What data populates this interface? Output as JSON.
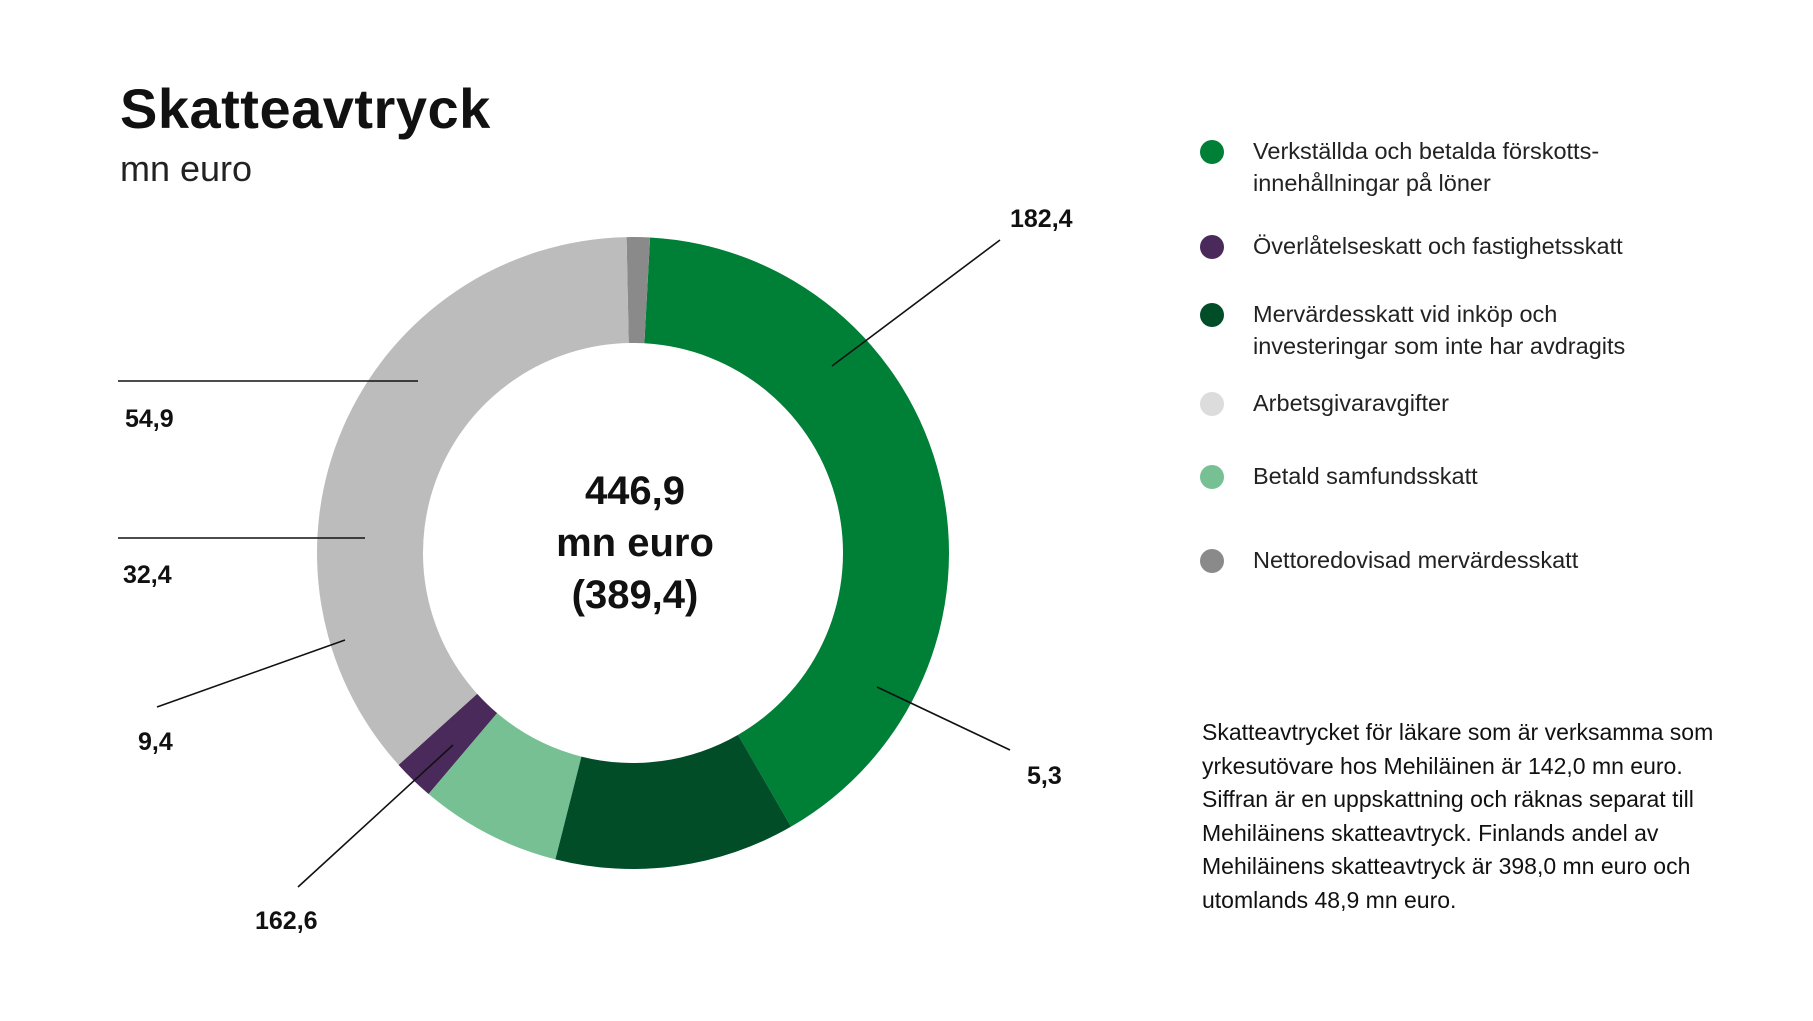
{
  "title": "Skatteavtryck",
  "subtitle": "mn euro",
  "center": {
    "line1": "446,9",
    "line2": "mn euro",
    "line3": "(389,4)"
  },
  "chart_data": {
    "type": "pie",
    "title": "Skatteavtryck",
    "subtitle": "mn euro",
    "total": 446.9,
    "total_previous": 389.4,
    "slices": [
      {
        "name": "Verkställda och betalda förskotts-innehållningar på löner",
        "value": 182.4,
        "label": "182,4",
        "color": "#007f37"
      },
      {
        "name": "Nettoredovisad mervärdesskatt",
        "value": 5.3,
        "label": "5,3",
        "color": "#8a8a8a"
      },
      {
        "name": "Arbetsgivaravgifter",
        "value": 162.6,
        "label": "162,6",
        "color": "#bcbcbc"
      },
      {
        "name": "Överlåtelseskatt och fastighetsskatt",
        "value": 9.4,
        "label": "9,4",
        "color": "#4a2a5a"
      },
      {
        "name": "Betald samfundsskatt",
        "value": 32.4,
        "label": "32,4",
        "color": "#76c093"
      },
      {
        "name": "Mervärdesskatt vid inköp och investeringar som inte har avdragits",
        "value": 54.9,
        "label": "54,9",
        "color": "#004d28"
      }
    ]
  },
  "legend": [
    {
      "line1": "Verkställda och betalda förskotts-",
      "line2": "innehållningar på löner",
      "color": "#007f37"
    },
    {
      "line1": "Överlåtelseskatt och fastighetsskatt",
      "line2": "",
      "color": "#4a2a5a"
    },
    {
      "line1": "Mervärdesskatt vid inköp och",
      "line2": "investeringar som inte har avdragits",
      "color": "#004d28"
    },
    {
      "line1": "Arbetsgivaravgifter",
      "line2": "",
      "color": "#dcdcdc"
    },
    {
      "line1": "Betald samfundsskatt",
      "line2": "",
      "color": "#76c093"
    },
    {
      "line1": "Nettoredovisad mervärdesskatt",
      "line2": "",
      "color": "#8a8a8a"
    }
  ],
  "footnote": "Skatteavtrycket för läkare som är verksamma som yrkesutövare hos Mehiläinen är 142,0 mn euro. Siffran är en uppskattning och räknas separat till Mehiläinens skatteavtryck. Finlands andel av Mehiläinens skatteavtryck är 398,0 mn euro och utomlands 48,9 mn euro."
}
